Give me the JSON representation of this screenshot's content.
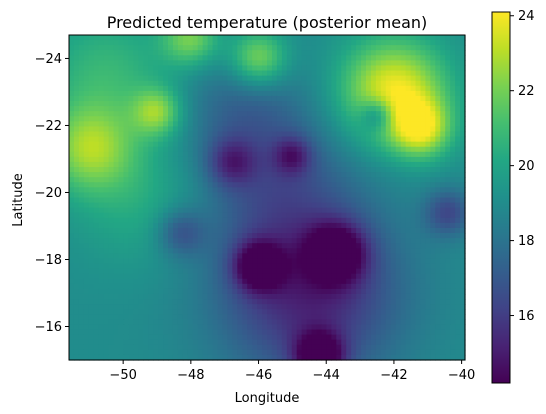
{
  "chart_data": {
    "type": "heatmap",
    "title": "Predicted temperature (posterior mean)",
    "xlabel": "Longitude",
    "ylabel": "Latitude",
    "xlim": [
      -51.6,
      -39.9
    ],
    "ylim": [
      -15.0,
      -24.7
    ],
    "y_axis_inverted": true,
    "x_ticks": [
      -50,
      -48,
      -46,
      -44,
      -42,
      -40
    ],
    "x_tick_labels": [
      "−50",
      "−48",
      "−46",
      "−44",
      "−42",
      "−40"
    ],
    "y_ticks": [
      -16,
      -18,
      -20,
      -22,
      -24
    ],
    "y_tick_labels": [
      "−16",
      "−18",
      "−20",
      "−22",
      "−24"
    ],
    "colorbar": {
      "colormap": "viridis",
      "range": [
        14.2,
        24.1
      ],
      "ticks": [
        16,
        18,
        20,
        22,
        24
      ],
      "tick_labels": [
        "16",
        "18",
        "20",
        "22",
        "24"
      ]
    },
    "grid": false,
    "background_field": 19.0,
    "features": [
      {
        "lon": -42.0,
        "lat": -23.0,
        "value": 24.0,
        "spread": 1.1
      },
      {
        "lon": -41.2,
        "lat": -21.9,
        "value": 22.8,
        "spread": 0.6
      },
      {
        "lon": -51.0,
        "lat": -21.3,
        "value": 22.2,
        "spread": 0.9
      },
      {
        "lon": -49.0,
        "lat": -22.4,
        "value": 22.0,
        "spread": 0.5
      },
      {
        "lon": -46.0,
        "lat": -24.0,
        "value": 22.5,
        "spread": 0.6
      },
      {
        "lon": -48.0,
        "lat": -24.6,
        "value": 22.0,
        "spread": 0.6
      },
      {
        "lon": -50.5,
        "lat": -23.5,
        "value": 20.8,
        "spread": 1.4
      },
      {
        "lon": -49.5,
        "lat": -19.8,
        "value": 20.3,
        "spread": 1.4
      },
      {
        "lon": -44.5,
        "lat": -17.0,
        "value": 15.2,
        "spread": 1.9
      },
      {
        "lon": -44.2,
        "lat": -15.1,
        "value": 14.2,
        "spread": 0.5
      },
      {
        "lon": -43.7,
        "lat": -18.2,
        "value": 14.6,
        "spread": 0.6
      },
      {
        "lon": -46.0,
        "lat": -17.8,
        "value": 14.8,
        "spread": 0.5
      },
      {
        "lon": -45.5,
        "lat": -20.3,
        "value": 17.3,
        "spread": 1.6
      },
      {
        "lon": -46.5,
        "lat": -22.5,
        "value": 17.6,
        "spread": 1.3
      },
      {
        "lon": -45.0,
        "lat": -21.1,
        "value": 16.6,
        "spread": 0.4
      },
      {
        "lon": -42.5,
        "lat": -22.3,
        "value": 16.4,
        "spread": 0.35
      },
      {
        "lon": -40.4,
        "lat": -19.4,
        "value": 16.5,
        "spread": 0.5
      },
      {
        "lon": -48.3,
        "lat": -18.8,
        "value": 16.8,
        "spread": 0.5
      },
      {
        "lon": -46.8,
        "lat": -20.9,
        "value": 16.6,
        "spread": 0.5
      }
    ]
  }
}
